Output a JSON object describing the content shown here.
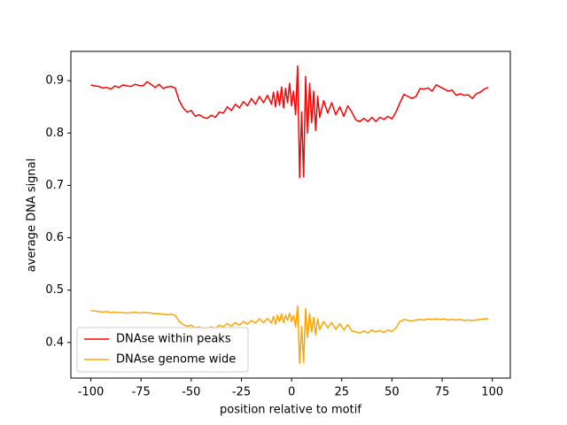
{
  "chart_data": {
    "type": "line",
    "xlabel": "position relative to motif",
    "ylabel": "average DNA signal",
    "x": [
      -100,
      -98,
      -96,
      -94,
      -92,
      -90,
      -88,
      -86,
      -84,
      -82,
      -80,
      -78,
      -76,
      -74,
      -72,
      -70,
      -68,
      -66,
      -64,
      -62,
      -60,
      -58,
      -56,
      -54,
      -52,
      -50,
      -48,
      -46,
      -44,
      -42,
      -40,
      -38,
      -36,
      -34,
      -32,
      -30,
      -28,
      -26,
      -24,
      -22,
      -20,
      -18,
      -16,
      -14,
      -12,
      -10,
      -9,
      -8,
      -7,
      -6,
      -5,
      -4,
      -3,
      -2,
      -1,
      0,
      1,
      2,
      3,
      4,
      5,
      6,
      7,
      8,
      9,
      10,
      11,
      12,
      13,
      14,
      16,
      18,
      20,
      22,
      24,
      26,
      28,
      30,
      32,
      34,
      36,
      38,
      40,
      42,
      44,
      46,
      48,
      50,
      52,
      54,
      56,
      58,
      60,
      62,
      64,
      66,
      68,
      70,
      72,
      74,
      76,
      78,
      80,
      82,
      84,
      86,
      88,
      90,
      92,
      94,
      96,
      98
    ],
    "series": [
      {
        "name": "DNAse within peaks",
        "color": "#ff0000",
        "values": [
          0.892,
          0.89,
          0.889,
          0.886,
          0.887,
          0.884,
          0.89,
          0.887,
          0.892,
          0.89,
          0.889,
          0.893,
          0.891,
          0.89,
          0.898,
          0.893,
          0.887,
          0.893,
          0.885,
          0.888,
          0.889,
          0.886,
          0.862,
          0.848,
          0.84,
          0.843,
          0.832,
          0.835,
          0.83,
          0.828,
          0.834,
          0.83,
          0.84,
          0.838,
          0.85,
          0.843,
          0.855,
          0.848,
          0.86,
          0.852,
          0.866,
          0.855,
          0.87,
          0.858,
          0.872,
          0.855,
          0.878,
          0.85,
          0.88,
          0.853,
          0.888,
          0.848,
          0.885,
          0.858,
          0.895,
          0.852,
          0.88,
          0.835,
          0.928,
          0.715,
          0.84,
          0.716,
          0.908,
          0.8,
          0.895,
          0.82,
          0.88,
          0.805,
          0.87,
          0.83,
          0.862,
          0.838,
          0.858,
          0.835,
          0.85,
          0.832,
          0.852,
          0.84,
          0.825,
          0.822,
          0.828,
          0.822,
          0.83,
          0.822,
          0.83,
          0.826,
          0.832,
          0.827,
          0.84,
          0.858,
          0.874,
          0.87,
          0.866,
          0.87,
          0.885,
          0.884,
          0.886,
          0.88,
          0.892,
          0.888,
          0.884,
          0.88,
          0.882,
          0.872,
          0.875,
          0.872,
          0.873,
          0.866,
          0.875,
          0.878,
          0.884,
          0.887
        ]
      },
      {
        "name": "DNAse genome wide",
        "color": "#ffa500",
        "values": [
          0.461,
          0.46,
          0.459,
          0.458,
          0.459,
          0.457,
          0.458,
          0.457,
          0.457,
          0.456,
          0.457,
          0.458,
          0.456,
          0.457,
          0.457,
          0.456,
          0.455,
          0.455,
          0.454,
          0.453,
          0.454,
          0.452,
          0.44,
          0.434,
          0.431,
          0.433,
          0.428,
          0.43,
          0.426,
          0.427,
          0.43,
          0.427,
          0.433,
          0.43,
          0.436,
          0.431,
          0.438,
          0.433,
          0.44,
          0.435,
          0.442,
          0.437,
          0.445,
          0.438,
          0.446,
          0.437,
          0.45,
          0.435,
          0.452,
          0.44,
          0.455,
          0.438,
          0.452,
          0.442,
          0.456,
          0.44,
          0.452,
          0.43,
          0.47,
          0.36,
          0.43,
          0.362,
          0.465,
          0.41,
          0.455,
          0.42,
          0.448,
          0.415,
          0.445,
          0.425,
          0.44,
          0.428,
          0.438,
          0.425,
          0.436,
          0.424,
          0.434,
          0.422,
          0.42,
          0.418,
          0.422,
          0.418,
          0.424,
          0.42,
          0.423,
          0.419,
          0.424,
          0.421,
          0.428,
          0.44,
          0.444,
          0.442,
          0.441,
          0.443,
          0.444,
          0.443,
          0.445,
          0.444,
          0.445,
          0.444,
          0.445,
          0.443,
          0.444,
          0.443,
          0.444,
          0.442,
          0.443,
          0.442,
          0.443,
          0.444,
          0.445,
          0.445
        ]
      }
    ],
    "xlim": [
      -109.95,
      108.95
    ],
    "xticks": [
      -100,
      -75,
      -50,
      -25,
      0,
      25,
      50,
      75,
      100
    ],
    "ylim": [
      0.332,
      0.956
    ],
    "yticks": [
      0.4,
      0.5,
      0.6,
      0.7,
      0.8,
      0.9
    ],
    "legend": "lower left"
  }
}
